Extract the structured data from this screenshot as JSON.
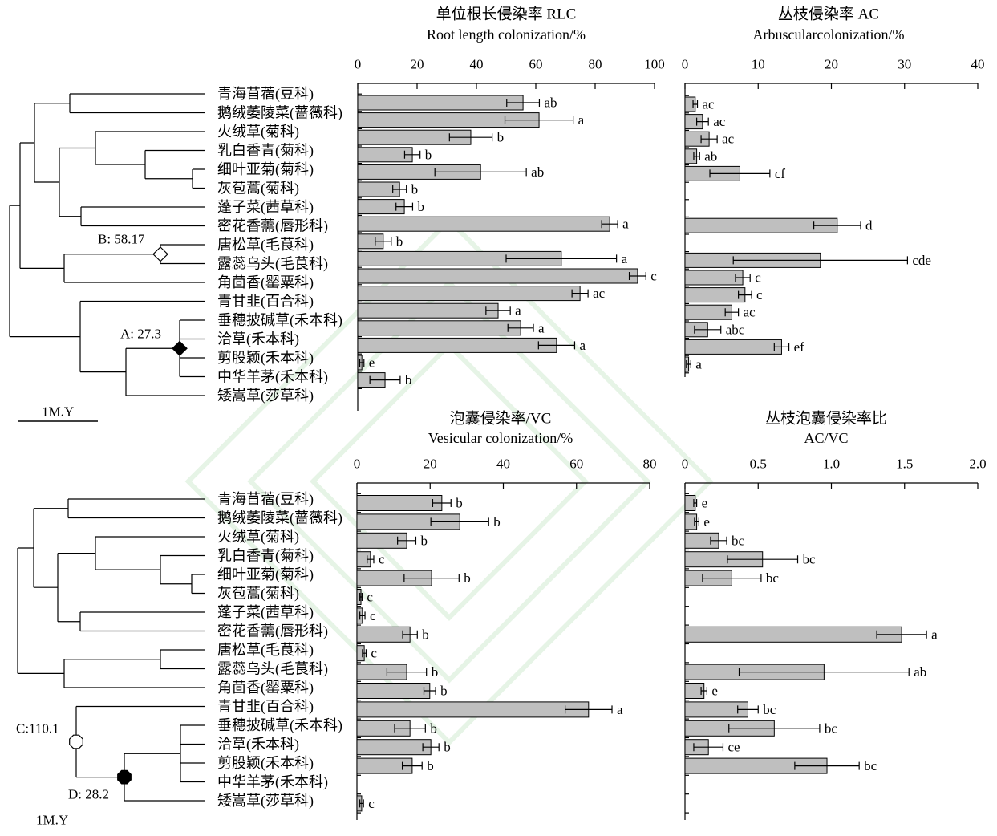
{
  "chart_data": [
    {
      "type": "bar",
      "orientation": "horizontal",
      "title": "单位根长侵染率 RLC",
      "subtitle": "Root length colonization/%",
      "categories": [
        "青海苜蓿(豆科)",
        "鹅绒萎陵菜(蔷薇科)",
        "火绒草(菊科)",
        "乳白香青(菊科)",
        "细叶亚菊(菊科)",
        "灰苞蒿(菊科)",
        "蓬子菜(茜草科)",
        "密花香薷(唇形科)",
        "唐松草(毛茛科)",
        "露蕊乌头(毛茛科)",
        "角茴香(罂粟科)",
        "青甘韭(百合科)",
        "垂穗披碱草(禾本科)",
        "洽草(禾本科)",
        "剪股颖(禾本科)",
        "中华羊茅(禾本科)",
        "矮嵩草(莎草科)"
      ],
      "values": [
        55.7,
        61.1,
        38.1,
        18.4,
        41.4,
        14.1,
        15.7,
        84.9,
        8.6,
        68.6,
        94.3,
        74.9,
        47.3,
        54.9,
        67.0,
        1.4,
        9.2
      ],
      "errors": [
        5.5,
        11.5,
        7.2,
        2.6,
        15.4,
        2.3,
        2.8,
        2.7,
        2.7,
        18.6,
        2.8,
        2.7,
        4.1,
        4.3,
        6.1,
        0.7,
        5.1
      ],
      "letters": [
        "ab",
        "a",
        "b",
        "b",
        "ab",
        "b",
        "b",
        "a",
        "b",
        "a",
        "c",
        "ac",
        "a",
        "a",
        "a",
        "e",
        "b"
      ],
      "xlim": [
        0,
        100
      ],
      "tick_labels": [
        "0",
        "20",
        "40",
        "60",
        "80",
        "100"
      ],
      "axis_position": "top",
      "bar_color": "#bfbfbf",
      "grid": false
    },
    {
      "type": "bar",
      "orientation": "horizontal",
      "title": "丛枝侵染率 AC",
      "subtitle": "Arbuscularcolonization/%",
      "values": [
        1.4,
        2.4,
        3.3,
        1.6,
        7.5,
        null,
        null,
        20.8,
        null,
        18.5,
        7.9,
        8.2,
        6.4,
        3.1,
        13.2,
        0.5,
        null
      ],
      "errors": [
        0.3,
        0.8,
        1.1,
        0.4,
        4.1,
        null,
        null,
        3.2,
        null,
        11.9,
        1.0,
        0.9,
        0.9,
        1.8,
        1.0,
        0.3,
        null
      ],
      "letters": [
        "ac",
        "ac",
        "ac",
        "ab",
        "cf",
        null,
        null,
        "d",
        null,
        "cde",
        "c",
        "c",
        "ac",
        "abc",
        "ef",
        "a",
        null
      ],
      "xlim": [
        0,
        40
      ],
      "tick_labels": [
        "0",
        "10",
        "20",
        "30",
        "40"
      ],
      "axis_position": "top",
      "bar_color": "#bfbfbf",
      "grid": false
    },
    {
      "type": "bar",
      "orientation": "horizontal",
      "title": "泡囊侵染率/VC",
      "subtitle": "Vesicular colonization/%",
      "categories": [
        "青海苜蓿(豆科)",
        "鹅绒萎陵菜(蔷薇科)",
        "火绒草(菊科)",
        "乳白香青(菊科)",
        "细叶亚菊(菊科)",
        "灰苞蒿(菊科)",
        "蓬子菜(茜草科)",
        "密花香薷(唇形科)",
        "唐松草(毛茛科)",
        "露蕊乌头(毛茛科)",
        "角茴香(罂粟科)",
        "青甘韭(百合科)",
        "垂穗披碱草(禾本科)",
        "洽草(禾本科)",
        "剪股颖(禾本科)",
        "中华羊茅(禾本科)",
        "矮嵩草(莎草科)"
      ],
      "values": [
        23.2,
        28.1,
        13.6,
        3.7,
        20.4,
        1.1,
        1.5,
        14.5,
        2.0,
        13.6,
        19.9,
        63.3,
        14.5,
        20.2,
        15.1,
        null,
        1.3
      ],
      "errors": [
        2.5,
        7.9,
        2.5,
        0.9,
        7.5,
        0.3,
        0.7,
        2.0,
        0.5,
        5.4,
        1.6,
        6.4,
        4.2,
        2.2,
        2.7,
        null,
        0.5
      ],
      "letters": [
        "b",
        "b",
        "b",
        "c",
        "b",
        "c",
        "c",
        "b",
        "c",
        "b",
        "b",
        "a",
        "b",
        "b",
        "b",
        null,
        "c"
      ],
      "xlim": [
        0,
        80
      ],
      "tick_labels": [
        "0",
        "20",
        "40",
        "60",
        "80"
      ],
      "axis_position": "top",
      "bar_color": "#bfbfbf",
      "grid": false
    },
    {
      "type": "bar",
      "orientation": "horizontal",
      "title": "丛枝泡囊侵染率比",
      "subtitle": "AC/VC",
      "values": [
        0.07,
        0.08,
        0.23,
        0.53,
        0.32,
        null,
        null,
        1.48,
        null,
        0.95,
        0.13,
        0.43,
        0.61,
        0.16,
        0.97,
        null,
        null
      ],
      "errors": [
        0.01,
        0.015,
        0.055,
        0.24,
        0.2,
        null,
        null,
        0.17,
        null,
        0.58,
        0.02,
        0.07,
        0.31,
        0.1,
        0.22,
        null,
        null
      ],
      "letters": [
        "e",
        "e",
        "bc",
        "bc",
        "bc",
        null,
        null,
        "a",
        null,
        "ab",
        "e",
        "bc",
        "bc",
        "ce",
        "bc",
        null,
        null
      ],
      "xlim": [
        0,
        2.0
      ],
      "tick_labels": [
        "0",
        "0.5",
        "1.0",
        "1.5",
        "2.0"
      ],
      "axis_position": "top",
      "bar_color": "#bfbfbf",
      "grid": false
    }
  ],
  "tree_top": {
    "node_b": "B: 58.17",
    "node_a": "A: 27.3",
    "scale": "1M.Y"
  },
  "tree_bottom": {
    "node_c": "C:110.1",
    "node_d": "D: 28.2",
    "scale": "1M.Y"
  }
}
